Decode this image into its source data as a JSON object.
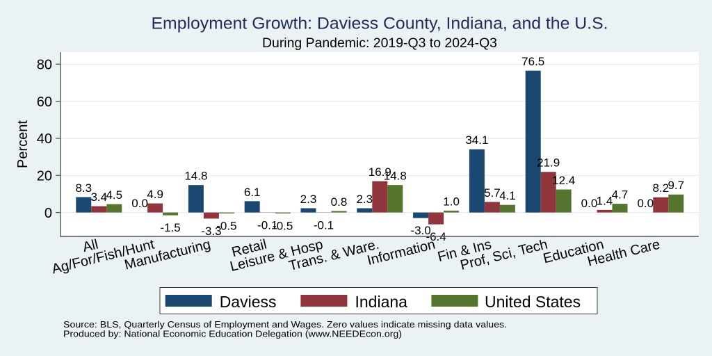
{
  "colors": {
    "background": "#EAF2F3",
    "plot_background": "#FFFFFF",
    "title": "#1F2D5A",
    "gridline": "#E3ECEF",
    "axis": "#555555"
  },
  "chart_data": {
    "type": "bar",
    "title": "Employment Growth: Daviess County, Indiana, and the U.S.",
    "subtitle": "During Pandemic: 2019-Q3 to 2024-Q3",
    "xlabel": "",
    "ylabel": "Percent",
    "ylim": [
      -12.9,
      86.5
    ],
    "yticks": [
      0,
      20,
      40,
      60,
      80
    ],
    "grid": true,
    "categories": [
      "All",
      "Ag/For/Fish/Hunt",
      "Manufacturing",
      "Retail",
      "Leisure & Hosp",
      "Trans. & Ware.",
      "Information",
      "Fin & Ins",
      "Prof, Sci, Tech",
      "Education",
      "Health Care"
    ],
    "series": [
      {
        "name": "Daviess",
        "color": "#1A476F",
        "values": [
          8.3,
          0.0,
          14.8,
          6.1,
          2.3,
          2.3,
          -3.0,
          34.1,
          76.5,
          0.0,
          0.0
        ],
        "value_labels": [
          "8.3",
          "0.0",
          "14.8",
          "6.1",
          "2.3",
          "2.3",
          "-3.0",
          "34.1",
          "76.5",
          "0.0",
          "0.0"
        ]
      },
      {
        "name": "Indiana",
        "color": "#90353B",
        "values": [
          3.4,
          4.9,
          -3.3,
          -0.1,
          -0.1,
          16.9,
          -6.4,
          5.7,
          21.9,
          1.4,
          8.2
        ],
        "value_labels": [
          "3.4",
          "4.9",
          "-3.3",
          "-0.1",
          "-0.1",
          "16.9",
          "-6.4",
          "5.7",
          "21.9",
          "1.4",
          "8.2"
        ]
      },
      {
        "name": "United States",
        "color": "#55752F",
        "values": [
          4.5,
          -1.5,
          -0.5,
          -0.5,
          0.8,
          14.8,
          1.0,
          4.1,
          12.4,
          4.7,
          9.7
        ],
        "value_labels": [
          "4.5",
          "-1.5",
          "-0.5",
          "-0.5",
          "0.8",
          "14.8",
          "1.0",
          "4.1",
          "12.4",
          "4.7",
          "9.7"
        ]
      }
    ],
    "legend": {
      "position": "bottom",
      "entries": [
        "Daviess",
        "Indiana",
        "United States"
      ]
    },
    "notes": [
      "Source: BLS, Quarterly Census of Employment and Wages. Zero values indicate missing data values.",
      "Produced by: National Economic Education Delegation (www.NEEDEcon.org)"
    ]
  }
}
